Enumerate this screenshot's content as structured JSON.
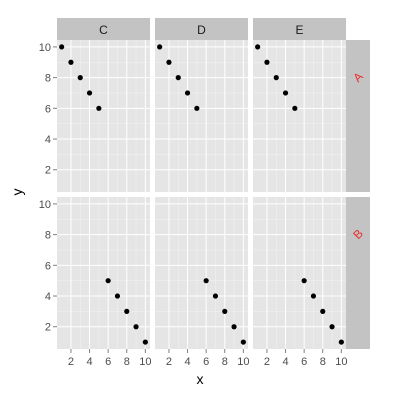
{
  "chart_data": {
    "type": "scatter",
    "layout": "facet-grid",
    "xlabel": "x",
    "ylabel": "y",
    "xlim": [
      0.5,
      10.5
    ],
    "ylim": [
      0.55,
      10.45
    ],
    "x_ticks": [
      2,
      4,
      6,
      8,
      10
    ],
    "y_ticks": [
      2,
      4,
      6,
      8,
      10
    ],
    "x_tick_labels": [
      "2",
      "4",
      "6",
      "8",
      "10"
    ],
    "y_tick_labels": [
      "2",
      "4",
      "6",
      "8",
      "10"
    ],
    "grid": true,
    "legend": "none",
    "columns": [
      "C",
      "D",
      "E"
    ],
    "rows": [
      "A",
      "B"
    ],
    "panels": [
      {
        "row": "A",
        "col": "C",
        "points": [
          [
            1,
            10
          ],
          [
            2,
            9
          ],
          [
            3,
            8
          ],
          [
            4,
            7
          ],
          [
            5,
            6
          ]
        ]
      },
      {
        "row": "A",
        "col": "D",
        "points": [
          [
            1,
            10
          ],
          [
            2,
            9
          ],
          [
            3,
            8
          ],
          [
            4,
            7
          ],
          [
            5,
            6
          ]
        ]
      },
      {
        "row": "A",
        "col": "E",
        "points": [
          [
            1,
            10
          ],
          [
            2,
            9
          ],
          [
            3,
            8
          ],
          [
            4,
            7
          ],
          [
            5,
            6
          ]
        ]
      },
      {
        "row": "B",
        "col": "C",
        "points": [
          [
            6,
            5
          ],
          [
            7,
            4
          ],
          [
            8,
            3
          ],
          [
            9,
            2
          ],
          [
            10,
            1
          ]
        ]
      },
      {
        "row": "B",
        "col": "D",
        "points": [
          [
            6,
            5
          ],
          [
            7,
            4
          ],
          [
            8,
            3
          ],
          [
            9,
            2
          ],
          [
            10,
            1
          ]
        ]
      },
      {
        "row": "B",
        "col": "E",
        "points": [
          [
            6,
            5
          ],
          [
            7,
            4
          ],
          [
            8,
            3
          ],
          [
            9,
            2
          ],
          [
            10,
            1
          ]
        ]
      }
    ]
  },
  "style": {
    "panel_background": "#e5e5e5",
    "grid_major": "#ffffff",
    "grid_minor": "#f2f2f2",
    "strip_background": "#c3c3c3",
    "row_strip_text": "#e8302f",
    "point_color": "#000000",
    "tick_color": "#7f7f7f"
  }
}
